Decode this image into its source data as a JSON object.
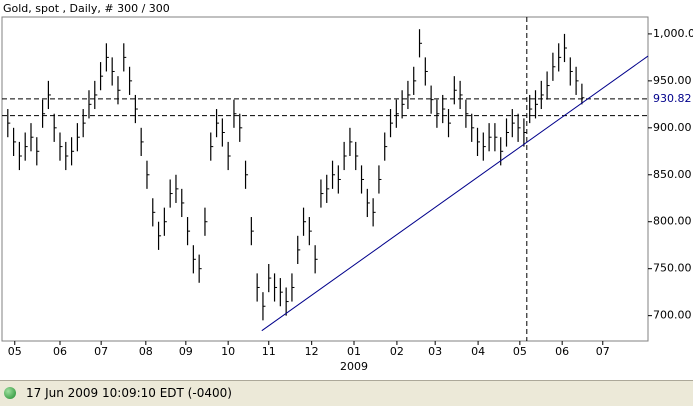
{
  "chart_data": {
    "type": "hlc",
    "title": "Gold, spot , Daily, # 300 / 300",
    "bar_color": "#000000",
    "xlim": [
      -1,
      110.4
    ],
    "xticks": [
      {
        "value": 1.2,
        "label": "05"
      },
      {
        "value": 9.0,
        "label": "06"
      },
      {
        "value": 16.1,
        "label": "07"
      },
      {
        "value": 23.8,
        "label": "08"
      },
      {
        "value": 30.7,
        "label": "09"
      },
      {
        "value": 38.0,
        "label": "10"
      },
      {
        "value": 45.0,
        "label": "11"
      },
      {
        "value": 52.4,
        "label": "12"
      },
      {
        "value": 59.7,
        "label": "01"
      },
      {
        "value": 67.1,
        "label": "02"
      },
      {
        "value": 73.7,
        "label": "03"
      },
      {
        "value": 81.1,
        "label": "04"
      },
      {
        "value": 88.3,
        "label": "05"
      },
      {
        "value": 95.6,
        "label": "06"
      },
      {
        "value": 102.6,
        "label": "07"
      }
    ],
    "year_label": {
      "value": 59.7,
      "label": "2009"
    },
    "ylim": [
      673,
      1018
    ],
    "yticks": [
      {
        "value": 700,
        "label": "700.00"
      },
      {
        "value": 750,
        "label": "750.00"
      },
      {
        "value": 800,
        "label": "800.00"
      },
      {
        "value": 850,
        "label": "850.00"
      },
      {
        "value": 900,
        "label": "900.00"
      },
      {
        "value": 950,
        "label": "950.00"
      },
      {
        "value": 1000,
        "label": "1,000.00"
      }
    ],
    "high": [
      920,
      900,
      885,
      895,
      905,
      890,
      930,
      950,
      915,
      895,
      885,
      890,
      905,
      920,
      940,
      950,
      970,
      990,
      975,
      955,
      990,
      965,
      935,
      900,
      865,
      825,
      800,
      815,
      845,
      850,
      835,
      805,
      775,
      765,
      815,
      895,
      920,
      910,
      885,
      930,
      915,
      865,
      805,
      745,
      725,
      755,
      745,
      740,
      730,
      745,
      785,
      815,
      805,
      775,
      845,
      850,
      865,
      860,
      885,
      900,
      885,
      860,
      835,
      825,
      860,
      895,
      920,
      930,
      940,
      950,
      965,
      1005,
      975,
      945,
      930,
      935,
      920,
      955,
      950,
      930,
      915,
      900,
      895,
      905,
      905,
      890,
      910,
      920,
      915,
      910,
      935,
      940,
      950,
      960,
      980,
      990,
      1000,
      975,
      965,
      947
    ],
    "low": [
      890,
      870,
      855,
      865,
      875,
      860,
      900,
      920,
      885,
      865,
      855,
      860,
      875,
      890,
      910,
      920,
      940,
      960,
      945,
      925,
      960,
      935,
      905,
      870,
      835,
      795,
      770,
      785,
      815,
      820,
      805,
      775,
      745,
      735,
      785,
      865,
      890,
      880,
      855,
      900,
      885,
      835,
      775,
      715,
      695,
      725,
      715,
      710,
      700,
      715,
      755,
      785,
      775,
      745,
      815,
      820,
      835,
      830,
      855,
      870,
      855,
      830,
      805,
      795,
      830,
      865,
      890,
      900,
      910,
      920,
      935,
      975,
      945,
      915,
      900,
      905,
      890,
      925,
      920,
      900,
      885,
      870,
      865,
      875,
      875,
      860,
      880,
      890,
      885,
      880,
      905,
      910,
      920,
      930,
      950,
      960,
      970,
      945,
      935,
      925
    ],
    "close": [
      905,
      885,
      870,
      880,
      890,
      875,
      915,
      935,
      900,
      880,
      870,
      875,
      890,
      905,
      925,
      935,
      955,
      975,
      960,
      940,
      975,
      950,
      920,
      885,
      850,
      810,
      785,
      800,
      830,
      835,
      820,
      790,
      760,
      750,
      800,
      880,
      905,
      895,
      870,
      915,
      900,
      850,
      790,
      730,
      710,
      740,
      730,
      725,
      715,
      730,
      770,
      800,
      790,
      760,
      830,
      835,
      850,
      845,
      870,
      885,
      870,
      845,
      820,
      810,
      845,
      880,
      905,
      915,
      925,
      935,
      950,
      990,
      960,
      930,
      915,
      920,
      905,
      940,
      935,
      915,
      900,
      885,
      880,
      890,
      890,
      875,
      895,
      905,
      900,
      895,
      920,
      925,
      935,
      945,
      965,
      975,
      985,
      960,
      950,
      932
    ],
    "price_line": 930.82,
    "support_line": 913,
    "cursor_x": 89.5,
    "trendline": {
      "x": [
        43.8,
        110.4
      ],
      "y": [
        684,
        976.4
      ],
      "color": "#00008b"
    }
  },
  "status": {
    "text": "17 Jun 2009 10:09:10 EDT (-0400)"
  }
}
